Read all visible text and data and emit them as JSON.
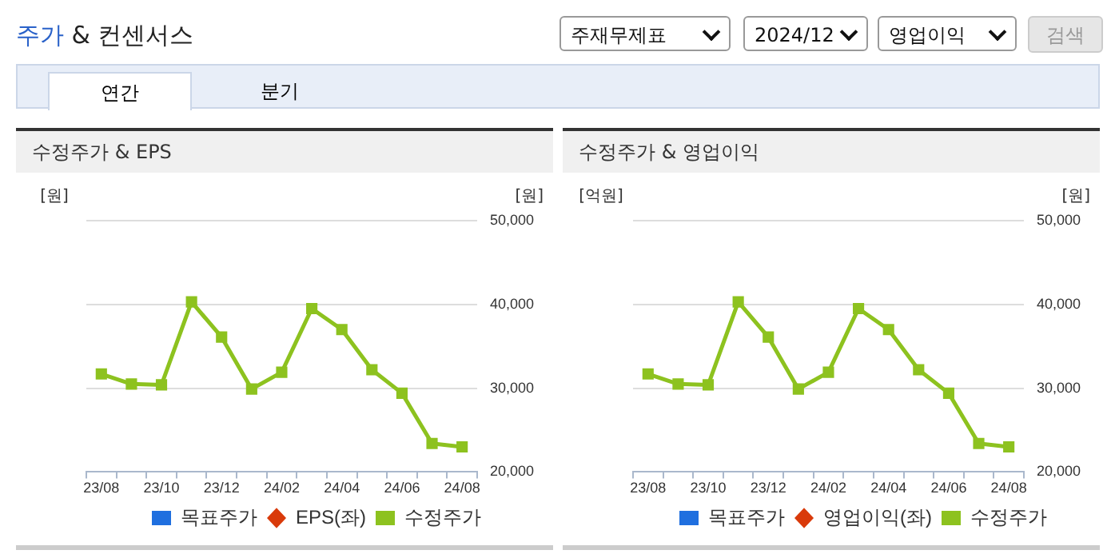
{
  "chart_data": [
    {
      "type": "other",
      "title": "주가 & 컨센서스",
      "annotations": [
        "주재무제표",
        "2024/12",
        "영업이익",
        "검색",
        "연간",
        "분기"
      ]
    },
    {
      "type": "line",
      "title": "수정주가 & EPS",
      "ylabel": "[원]",
      "y2label": "[원]",
      "categories": [
        "23/08",
        null,
        "23/10",
        null,
        "23/12",
        null,
        "24/02",
        null,
        "24/04",
        null,
        "24/06",
        null,
        "24/08"
      ],
      "series": [
        {
          "name": "목표주가",
          "type": "bar",
          "color": "#1f6fdf",
          "values": [
            null,
            null,
            null,
            null,
            null,
            null,
            null,
            null,
            null,
            null,
            null,
            null,
            null
          ]
        },
        {
          "name": "EPS(좌)",
          "color": "#d93a0a",
          "marker": "diamond",
          "values": [
            null,
            null,
            null,
            null,
            null,
            null,
            null,
            null,
            null,
            null,
            null,
            null,
            null
          ]
        },
        {
          "name": "수정주가",
          "color": "#8dc21f",
          "axis": "y2",
          "marker": "square",
          "values": [
            31700,
            30500,
            30400,
            40300,
            36100,
            29900,
            31900,
            39500,
            37000,
            32200,
            29400,
            23400,
            23000
          ]
        }
      ],
      "y2lim": [
        20000,
        50000
      ],
      "y2ticks": [
        {
          "value": 20000,
          "label": "20,000"
        },
        {
          "value": 30000,
          "label": "30,000"
        },
        {
          "value": 40000,
          "label": "40,000"
        },
        {
          "value": 50000,
          "label": "50,000"
        }
      ],
      "tick_labels": "x",
      "grid": "y",
      "legend": "bottom"
    },
    {
      "type": "line",
      "title": "수정주가 & 영업이익",
      "ylabel": "[억원]",
      "y2label": "[원]",
      "categories": [
        "23/08",
        null,
        "23/10",
        null,
        "23/12",
        null,
        "24/02",
        null,
        "24/04",
        null,
        "24/06",
        null,
        "24/08"
      ],
      "series": [
        {
          "name": "목표주가",
          "type": "bar",
          "color": "#1f6fdf",
          "values": [
            null,
            null,
            null,
            null,
            null,
            null,
            null,
            null,
            null,
            null,
            null,
            null,
            null
          ]
        },
        {
          "name": "영업이익(좌)",
          "color": "#d93a0a",
          "marker": "diamond",
          "values": [
            null,
            null,
            null,
            null,
            null,
            null,
            null,
            null,
            null,
            null,
            null,
            null,
            null
          ]
        },
        {
          "name": "수정주가",
          "color": "#8dc21f",
          "axis": "y2",
          "marker": "square",
          "values": [
            31700,
            30500,
            30400,
            40300,
            36100,
            29900,
            31900,
            39500,
            37000,
            32200,
            29400,
            23400,
            23000
          ]
        }
      ],
      "y2lim": [
        20000,
        50000
      ],
      "y2ticks": [
        {
          "value": 20000,
          "label": "20,000"
        },
        {
          "value": 30000,
          "label": "30,000"
        },
        {
          "value": 40000,
          "label": "40,000"
        },
        {
          "value": 50000,
          "label": "50,000"
        }
      ],
      "tick_labels": "x",
      "grid": "y",
      "legend": "bottom"
    }
  ]
}
